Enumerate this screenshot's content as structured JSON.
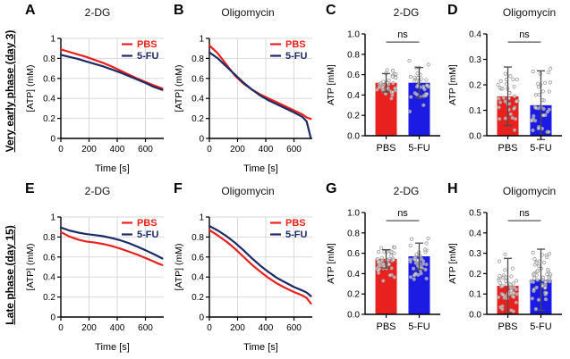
{
  "figure": {
    "row_labels": [
      {
        "label": "Very early phase (day 3)"
      },
      {
        "label": "Late phase (day 15)"
      }
    ],
    "palette": {
      "pbs_red": "#e8201e",
      "fu_navy": "#1c2a66",
      "fu_blue": "#1b1be4",
      "grid": "#d9d9d9",
      "axis": "#000000",
      "error": "#4a4a4a",
      "scatter_stroke": "#9a9a9a",
      "sig": "#555555"
    }
  },
  "chart_data": [
    {
      "panel": "A",
      "type": "line",
      "title": "2-DG",
      "xlabel": "Time [s]",
      "ylabel": "[ATP] (mM)",
      "xlim": [
        0,
        730
      ],
      "ylim": [
        0,
        1
      ],
      "xticks": [
        0,
        200,
        400,
        600
      ],
      "yticks": [
        0,
        0.2,
        0.4,
        0.6,
        0.8,
        1
      ],
      "ytick_labels": [
        "0",
        "0.2",
        "0.4",
        "0.6",
        "0.8",
        "1"
      ],
      "x": [
        0,
        60,
        120,
        180,
        240,
        300,
        360,
        420,
        480,
        540,
        600,
        660,
        690,
        720
      ],
      "series": [
        {
          "name": "PBS",
          "color": "pbs_red",
          "values": [
            0.89,
            0.865,
            0.84,
            0.815,
            0.785,
            0.755,
            0.72,
            0.68,
            0.64,
            0.6,
            0.565,
            0.53,
            0.515,
            0.5
          ]
        },
        {
          "name": "5-FU",
          "color": "fu_navy",
          "values": [
            0.835,
            0.815,
            0.795,
            0.77,
            0.745,
            0.72,
            0.69,
            0.66,
            0.625,
            0.59,
            0.555,
            0.515,
            0.5,
            0.485
          ]
        }
      ]
    },
    {
      "panel": "B",
      "type": "line",
      "title": "Oligomycin",
      "xlabel": "Time [s]",
      "ylabel": "[ATP] (mM)",
      "xlim": [
        0,
        730
      ],
      "ylim": [
        0,
        1
      ],
      "xticks": [
        0,
        200,
        400,
        600
      ],
      "yticks": [
        0,
        0.2,
        0.4,
        0.6,
        0.8,
        1
      ],
      "ytick_labels": [
        "0",
        "0.2",
        "0.4",
        "0.6",
        "0.8",
        "1"
      ],
      "x": [
        0,
        60,
        120,
        180,
        240,
        300,
        360,
        420,
        480,
        540,
        600,
        660,
        690,
        720
      ],
      "series": [
        {
          "name": "PBS",
          "color": "pbs_red",
          "values": [
            0.93,
            0.85,
            0.74,
            0.63,
            0.55,
            0.49,
            0.44,
            0.4,
            0.36,
            0.32,
            0.28,
            0.24,
            0.21,
            0.195
          ]
        },
        {
          "name": "5-FU",
          "color": "fu_navy",
          "values": [
            0.86,
            0.8,
            0.72,
            0.64,
            0.56,
            0.49,
            0.43,
            0.38,
            0.34,
            0.3,
            0.26,
            0.215,
            0.17,
            0.0
          ]
        }
      ]
    },
    {
      "panel": "C",
      "type": "bar",
      "title": "2-DG",
      "ylabel": "ATP [mM]",
      "ylim": [
        0,
        1
      ],
      "yticks": [
        0,
        0.2,
        0.4,
        0.6,
        0.8,
        1
      ],
      "ytick_labels": [
        "0.0",
        "0.2",
        "0.4",
        "0.6",
        "0.8",
        "1.0"
      ],
      "categories": [
        "PBS",
        "5-FU"
      ],
      "values": [
        0.52,
        0.52
      ],
      "errors": [
        0.09,
        0.15
      ],
      "bar_colors": [
        "pbs_red",
        "fu_blue"
      ],
      "sig_label": "ns",
      "seed": 7,
      "scatter": [
        {
          "n": 34,
          "mean": 0.5,
          "sd": 0.1,
          "min": 0.28,
          "max": 0.75
        },
        {
          "n": 34,
          "mean": 0.48,
          "sd": 0.15,
          "min": 0.14,
          "max": 0.8
        }
      ]
    },
    {
      "panel": "D",
      "type": "bar",
      "title": "Oligomycin",
      "ylabel": "ATP [mM]",
      "ylim": [
        0,
        0.4
      ],
      "yticks": [
        0,
        0.1,
        0.2,
        0.3,
        0.4
      ],
      "ytick_labels": [
        "0.0",
        "0.1",
        "0.2",
        "0.3",
        "0.4"
      ],
      "categories": [
        "PBS",
        "5-FU"
      ],
      "values": [
        0.155,
        0.12
      ],
      "errors": [
        0.115,
        0.135
      ],
      "bar_colors": [
        "pbs_red",
        "fu_blue"
      ],
      "sig_label": "ns",
      "seed": 11,
      "scatter": [
        {
          "n": 36,
          "mean": 0.15,
          "sd": 0.09,
          "min": 0.015,
          "max": 0.37
        },
        {
          "n": 36,
          "mean": 0.13,
          "sd": 0.1,
          "min": 0.015,
          "max": 0.37
        }
      ]
    },
    {
      "panel": "E",
      "type": "line",
      "title": "2-DG",
      "xlabel": "Time [s]",
      "ylabel": "[ATP] (mM)",
      "xlim": [
        0,
        730
      ],
      "ylim": [
        0,
        1
      ],
      "xticks": [
        0,
        200,
        400,
        600
      ],
      "yticks": [
        0,
        0.2,
        0.4,
        0.6,
        0.8,
        1
      ],
      "ytick_labels": [
        "0",
        "0.2",
        "0.4",
        "0.6",
        "0.8",
        "1"
      ],
      "x": [
        0,
        60,
        120,
        180,
        240,
        300,
        360,
        420,
        480,
        540,
        600,
        660,
        690,
        720
      ],
      "series": [
        {
          "name": "PBS",
          "color": "pbs_red",
          "values": [
            0.85,
            0.805,
            0.775,
            0.755,
            0.745,
            0.73,
            0.71,
            0.685,
            0.655,
            0.625,
            0.59,
            0.555,
            0.535,
            0.52
          ]
        },
        {
          "name": "5-FU",
          "color": "fu_navy",
          "values": [
            0.895,
            0.865,
            0.845,
            0.83,
            0.82,
            0.808,
            0.79,
            0.768,
            0.74,
            0.705,
            0.668,
            0.628,
            0.607,
            0.585
          ]
        }
      ]
    },
    {
      "panel": "F",
      "type": "line",
      "title": "Oligomycin",
      "xlabel": "Time [s]",
      "ylabel": "[ATP] (mM)",
      "xlim": [
        0,
        730
      ],
      "ylim": [
        0,
        1
      ],
      "xticks": [
        0,
        200,
        400,
        600
      ],
      "yticks": [
        0,
        0.2,
        0.4,
        0.6,
        0.8,
        1
      ],
      "ytick_labels": [
        "0",
        "0.2",
        "0.4",
        "0.6",
        "0.8",
        "1"
      ],
      "x": [
        0,
        60,
        120,
        180,
        240,
        300,
        360,
        420,
        480,
        540,
        600,
        660,
        690,
        720
      ],
      "series": [
        {
          "name": "PBS",
          "color": "pbs_red",
          "values": [
            0.87,
            0.815,
            0.755,
            0.685,
            0.605,
            0.525,
            0.455,
            0.39,
            0.335,
            0.29,
            0.25,
            0.215,
            0.19,
            0.135
          ]
        },
        {
          "name": "5-FU",
          "color": "fu_navy",
          "values": [
            0.91,
            0.865,
            0.81,
            0.745,
            0.67,
            0.59,
            0.515,
            0.45,
            0.39,
            0.345,
            0.3,
            0.265,
            0.245,
            0.21
          ]
        }
      ]
    },
    {
      "panel": "G",
      "type": "bar",
      "title": "2-DG",
      "ylabel": "ATP [mM]",
      "ylim": [
        0,
        1
      ],
      "yticks": [
        0,
        0.2,
        0.4,
        0.6,
        0.8,
        1
      ],
      "ytick_labels": [
        "0.0",
        "0.2",
        "0.4",
        "0.6",
        "0.8",
        "1.0"
      ],
      "categories": [
        "PBS",
        "5-FU"
      ],
      "values": [
        0.545,
        0.57
      ],
      "errors": [
        0.09,
        0.13
      ],
      "bar_colors": [
        "pbs_red",
        "fu_blue"
      ],
      "sig_label": "ns",
      "seed": 13,
      "scatter": [
        {
          "n": 46,
          "mean": 0.52,
          "sd": 0.1,
          "min": 0.24,
          "max": 0.73
        },
        {
          "n": 40,
          "mean": 0.52,
          "sd": 0.14,
          "min": 0.17,
          "max": 0.8
        }
      ]
    },
    {
      "panel": "H",
      "type": "bar",
      "title": "Oligomycin",
      "ylabel": "ATP [mM]",
      "ylim": [
        0,
        0.5
      ],
      "yticks": [
        0,
        0.1,
        0.2,
        0.3,
        0.4,
        0.5
      ],
      "ytick_labels": [
        "0.0",
        "0.1",
        "0.2",
        "0.3",
        "0.4",
        "0.5"
      ],
      "categories": [
        "PBS",
        "5-FU"
      ],
      "values": [
        0.14,
        0.17
      ],
      "errors": [
        0.135,
        0.15
      ],
      "bar_colors": [
        "pbs_red",
        "fu_blue"
      ],
      "sig_label": "ns",
      "seed": 17,
      "scatter": [
        {
          "n": 50,
          "mean": 0.15,
          "sd": 0.1,
          "min": 0.015,
          "max": 0.42
        },
        {
          "n": 50,
          "mean": 0.17,
          "sd": 0.1,
          "min": 0.02,
          "max": 0.4
        }
      ]
    }
  ]
}
